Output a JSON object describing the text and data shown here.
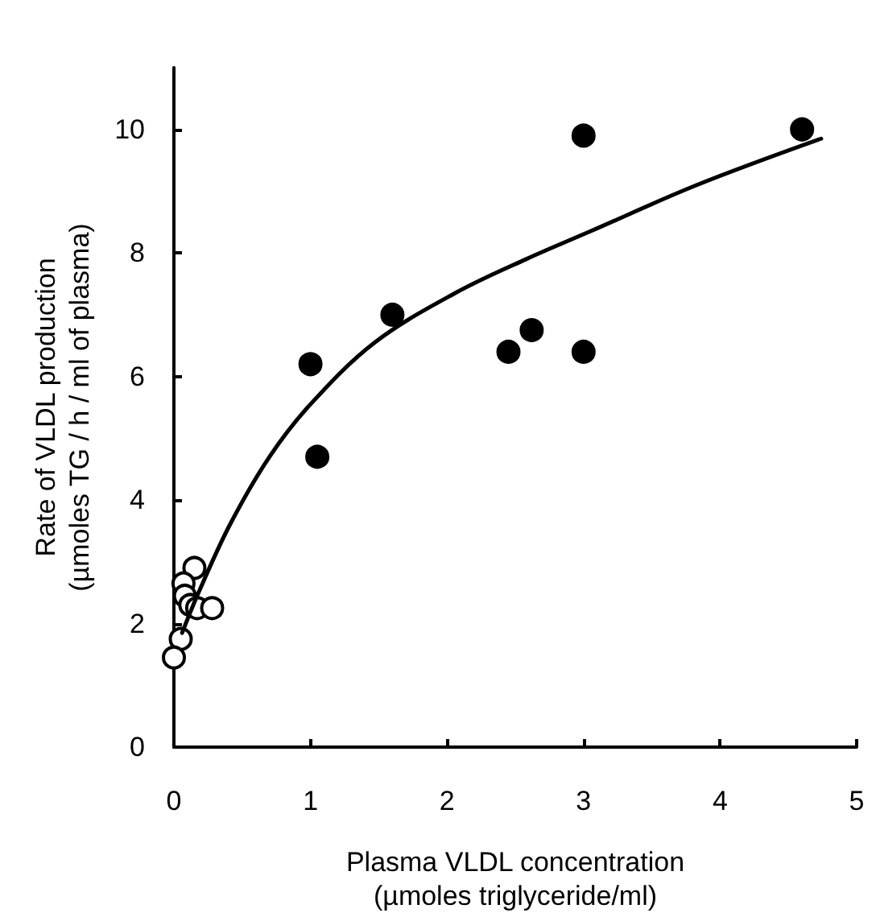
{
  "chart_data": {
    "type": "scatter",
    "xlabel": "Plasma VLDL concentration\n(µmoles triglyceride/ml)",
    "ylabel": "Rate of VLDL production\n(µmoles TG / h / ml of plasma)",
    "xlim": [
      0,
      5
    ],
    "xticks": [
      0,
      1,
      2,
      3,
      4,
      5
    ],
    "ylim": [
      0,
      11
    ],
    "yticks": [
      0,
      2,
      4,
      6,
      8,
      10
    ],
    "grid": false,
    "series": [
      {
        "type": "line",
        "marker": "none",
        "color": "#000000",
        "x": [
          0.06,
          0.18,
          0.41,
          0.7,
          1.0,
          1.47,
          2.06,
          2.58,
          3.05,
          3.83,
          4.74
        ],
        "values": [
          1.85,
          2.5,
          3.6,
          4.7,
          5.55,
          6.55,
          7.35,
          7.9,
          8.35,
          9.1,
          9.85
        ]
      },
      {
        "marker": "circle",
        "color": "#ffffff",
        "x": [
          0.15,
          0.07,
          0.08,
          0.12,
          0.17,
          0.28,
          0.05,
          0.0
        ],
        "values": [
          2.9,
          2.65,
          2.45,
          2.3,
          2.25,
          2.25,
          1.75,
          1.45
        ]
      },
      {
        "marker": "circle",
        "color": "#000000",
        "x": [
          1.0,
          1.05,
          1.6,
          2.45,
          2.62,
          3.0,
          3.0,
          4.6
        ],
        "values": [
          6.2,
          4.7,
          7.0,
          6.4,
          6.75,
          9.9,
          6.4,
          10.0
        ]
      }
    ]
  }
}
